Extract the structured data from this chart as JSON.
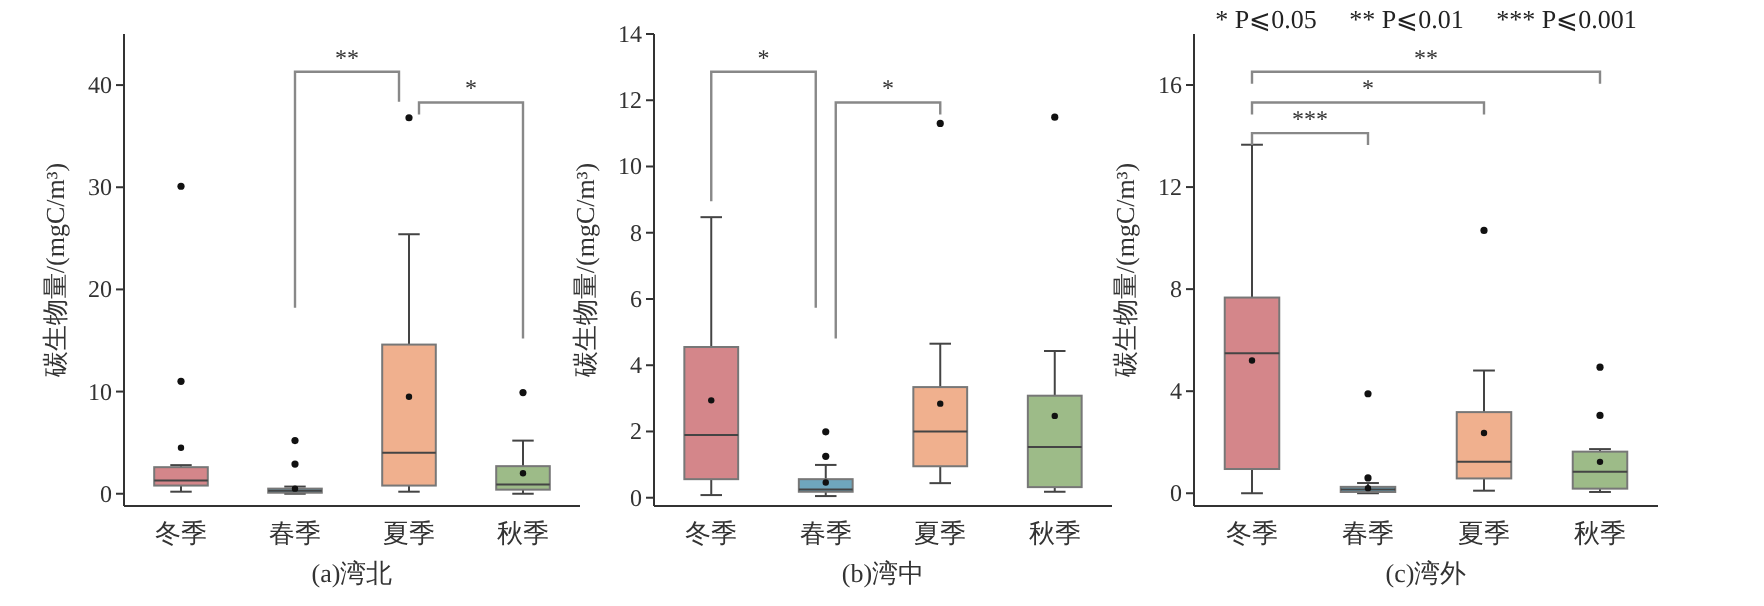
{
  "chart_data": [
    {
      "type": "box",
      "xlabel": "(a)湾北",
      "ylabel": "碳生物量/(mgC/m³)",
      "categories": [
        "冬季",
        "春季",
        "夏季",
        "秋季"
      ],
      "colors": [
        "#d4868a",
        "#6fa7bd",
        "#f0b08e",
        "#9dbb88"
      ],
      "ylim": [
        -1.2,
        45
      ],
      "yticks": [
        0,
        10,
        20,
        30,
        40
      ],
      "boxes": [
        {
          "low": 0.2,
          "q1": 0.8,
          "median": 1.3,
          "q3": 2.6,
          "high": 2.8,
          "mean": 4.5,
          "outliers": [
            11,
            30.1
          ]
        },
        {
          "low": 0,
          "q1": 0.1,
          "median": 0.3,
          "q3": 0.5,
          "high": 0.7,
          "mean": 0.5,
          "outliers": [
            2.9,
            5.2
          ]
        },
        {
          "low": 0.2,
          "q1": 0.8,
          "median": 4,
          "q3": 14.6,
          "high": 25.4,
          "mean": 9.5,
          "outliers": [
            36.8
          ]
        },
        {
          "low": 0,
          "q1": 0.4,
          "median": 0.9,
          "q3": 2.7,
          "high": 5.2,
          "mean": 2,
          "outliers": [
            9.9
          ]
        }
      ],
      "annotations": [
        "**",
        "*"
      ]
    },
    {
      "type": "box",
      "xlabel": "(b)湾中",
      "ylabel": "碳生物量/(mgC/m³)",
      "categories": [
        "冬季",
        "春季",
        "夏季",
        "秋季"
      ],
      "colors": [
        "#d4868a",
        "#6fa7bd",
        "#f0b08e",
        "#9dbb88"
      ],
      "ylim": [
        -0.25,
        14
      ],
      "yticks": [
        0,
        2,
        4,
        6,
        8,
        10,
        12,
        14
      ],
      "boxes": [
        {
          "low": 0.08,
          "q1": 0.56,
          "median": 1.89,
          "q3": 4.55,
          "high": 8.47,
          "mean": 2.94
        },
        {
          "low": 0.05,
          "q1": 0.18,
          "median": 0.25,
          "q3": 0.56,
          "high": 0.99,
          "mean": 0.46,
          "outliers": [
            1.25,
            1.99
          ]
        },
        {
          "low": 0.44,
          "q1": 0.95,
          "median": 2,
          "q3": 3.34,
          "high": 4.65,
          "mean": 2.84,
          "outliers": [
            11.3
          ]
        },
        {
          "low": 0.18,
          "q1": 0.32,
          "median": 1.53,
          "q3": 3.08,
          "high": 4.43,
          "mean": 2.47,
          "outliers": [
            11.49
          ]
        }
      ],
      "annotations": [
        "*",
        "*"
      ]
    },
    {
      "type": "box",
      "xlabel": "(c)湾外",
      "ylabel": "碳生物量/(mgC/m³)",
      "categories": [
        "冬季",
        "春季",
        "夏季",
        "秋季"
      ],
      "colors": [
        "#d4868a",
        "#6fa7bd",
        "#f0b08e",
        "#9dbb88"
      ],
      "ylim": [
        -0.5,
        18
      ],
      "yticks": [
        0,
        4,
        8,
        12,
        16
      ],
      "boxes": [
        {
          "low": 0,
          "q1": 0.95,
          "median": 5.49,
          "q3": 7.67,
          "high": 13.66,
          "mean": 5.2
        },
        {
          "low": 0,
          "q1": 0.05,
          "median": 0.15,
          "q3": 0.25,
          "high": 0.4,
          "mean": 0.2,
          "outliers": [
            0.6,
            3.9
          ]
        },
        {
          "low": 0.1,
          "q1": 0.58,
          "median": 1.23,
          "q3": 3.18,
          "high": 4.81,
          "mean": 2.36,
          "outliers": [
            10.3
          ]
        },
        {
          "low": 0.05,
          "q1": 0.18,
          "median": 0.84,
          "q3": 1.63,
          "high": 1.73,
          "mean": 1.23,
          "outliers": [
            3.05,
            4.94
          ]
        }
      ],
      "annotations": [
        "* P⩽0.05     ** P⩽0.01     *** P⩽0.001",
        "***",
        "*",
        "**"
      ]
    }
  ]
}
